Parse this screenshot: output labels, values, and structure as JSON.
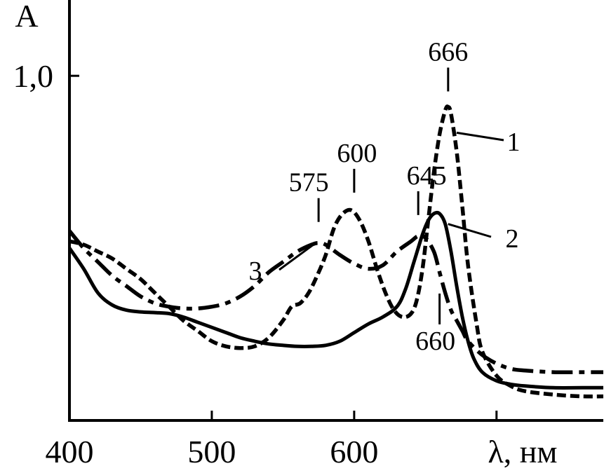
{
  "chart_data": {
    "type": "line",
    "ylabel": "A",
    "xlabel": "λ, нм",
    "xlim": [
      400,
      775
    ],
    "ylim": [
      0,
      1.22
    ],
    "x_ticks": [
      {
        "value": 400,
        "label": "400"
      },
      {
        "value": 500,
        "label": "500"
      },
      {
        "value": 600,
        "label": "600"
      },
      {
        "value": 700,
        "label": ""
      }
    ],
    "y_ticks": [
      {
        "value": 1.0,
        "label": "1,0"
      }
    ],
    "grid": false,
    "legend": "none",
    "line_color": "#000000",
    "series": [
      {
        "label": "1",
        "style": "dashed",
        "x": [
          400,
          410,
          420,
          430,
          440,
          450,
          460,
          470,
          480,
          490,
          500,
          510,
          520,
          530,
          540,
          550,
          556,
          562,
          568,
          574,
          580,
          586,
          592,
          598,
          604,
          610,
          616,
          622,
          628,
          634,
          640,
          644,
          648,
          652,
          656,
          660,
          664,
          666,
          668,
          672,
          676,
          680,
          686,
          690,
          700,
          710,
          720,
          740,
          760,
          775
        ],
        "y": [
          0.52,
          0.51,
          0.49,
          0.47,
          0.44,
          0.41,
          0.37,
          0.33,
          0.29,
          0.26,
          0.23,
          0.215,
          0.21,
          0.215,
          0.24,
          0.29,
          0.33,
          0.34,
          0.37,
          0.42,
          0.48,
          0.56,
          0.6,
          0.61,
          0.58,
          0.52,
          0.44,
          0.37,
          0.32,
          0.3,
          0.31,
          0.35,
          0.44,
          0.58,
          0.72,
          0.83,
          0.9,
          0.91,
          0.89,
          0.78,
          0.62,
          0.45,
          0.28,
          0.2,
          0.13,
          0.1,
          0.085,
          0.075,
          0.07,
          0.07
        ]
      },
      {
        "label": "2",
        "style": "solid",
        "x": [
          400,
          410,
          420,
          430,
          440,
          450,
          460,
          470,
          480,
          490,
          500,
          510,
          520,
          530,
          540,
          550,
          560,
          570,
          580,
          590,
          600,
          610,
          620,
          630,
          636,
          642,
          648,
          652,
          656,
          660,
          664,
          668,
          672,
          676,
          680,
          684,
          690,
          700,
          710,
          720,
          740,
          760,
          775
        ],
        "y": [
          0.5,
          0.44,
          0.37,
          0.335,
          0.32,
          0.315,
          0.313,
          0.31,
          0.3,
          0.285,
          0.27,
          0.255,
          0.24,
          0.23,
          0.222,
          0.218,
          0.215,
          0.215,
          0.218,
          0.23,
          0.255,
          0.28,
          0.3,
          0.33,
          0.38,
          0.46,
          0.54,
          0.58,
          0.6,
          0.6,
          0.57,
          0.49,
          0.39,
          0.3,
          0.23,
          0.18,
          0.14,
          0.115,
          0.105,
          0.1,
          0.095,
          0.095,
          0.095
        ]
      },
      {
        "label": "3",
        "style": "dash-dot",
        "x": [
          400,
          410,
          420,
          430,
          440,
          450,
          460,
          470,
          480,
          490,
          500,
          510,
          520,
          530,
          540,
          550,
          560,
          570,
          575,
          580,
          590,
          600,
          610,
          620,
          630,
          640,
          645,
          650,
          656,
          660,
          664,
          668,
          672,
          676,
          680,
          690,
          700,
          710,
          720,
          740,
          760,
          775
        ],
        "y": [
          0.55,
          0.5,
          0.46,
          0.42,
          0.39,
          0.36,
          0.34,
          0.33,
          0.325,
          0.325,
          0.33,
          0.34,
          0.36,
          0.39,
          0.43,
          0.46,
          0.49,
          0.51,
          0.515,
          0.51,
          0.48,
          0.455,
          0.44,
          0.45,
          0.49,
          0.52,
          0.535,
          0.53,
          0.49,
          0.43,
          0.37,
          0.32,
          0.29,
          0.26,
          0.23,
          0.19,
          0.165,
          0.15,
          0.145,
          0.14,
          0.14,
          0.14
        ]
      }
    ],
    "annotations": [
      {
        "text": "666",
        "x": 666,
        "series": "1",
        "type": "peak"
      },
      {
        "text": "600",
        "x": 600,
        "series": "1",
        "type": "peak"
      },
      {
        "text": "575",
        "x": 575,
        "series": "3",
        "type": "peak"
      },
      {
        "text": "645",
        "x": 645,
        "series": "3",
        "type": "peak"
      },
      {
        "text": "660",
        "x": 660,
        "series": "2",
        "type": "peak"
      }
    ]
  }
}
